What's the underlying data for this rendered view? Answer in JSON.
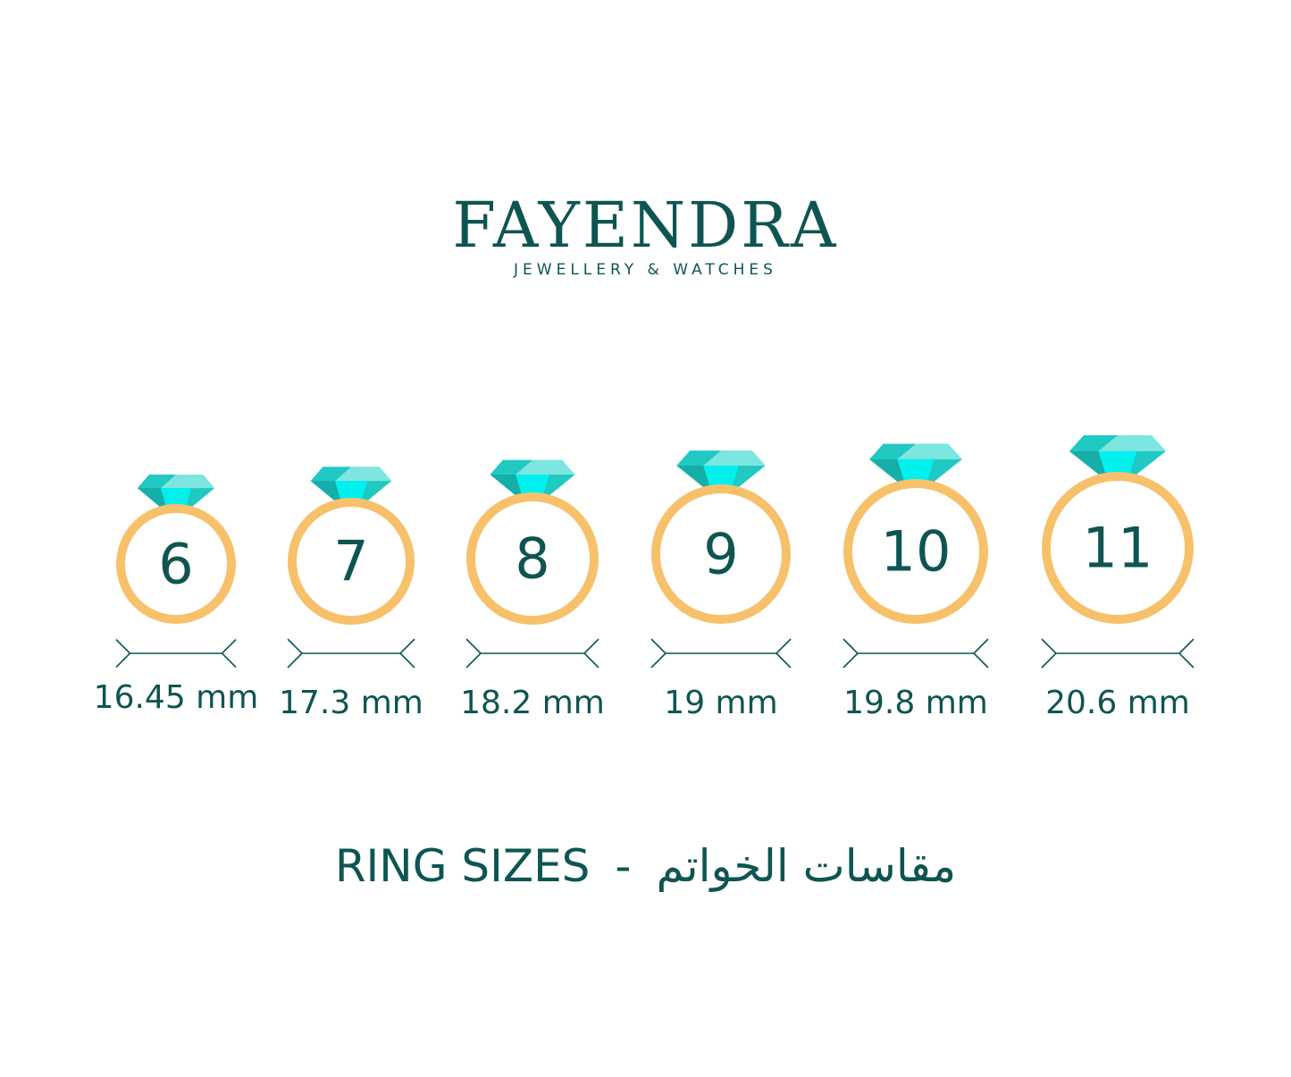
{
  "brand": {
    "name": "FAYENDRA",
    "tagline": "JEWELLERY & WATCHES"
  },
  "colors": {
    "text": "#0e5551",
    "ring": "#f7c16b",
    "gem_light": "#7ee6e0",
    "gem_mid": "#20c9c1",
    "gem_bright": "#00f0ee",
    "gem_dark": "#16aea8"
  },
  "rings": [
    {
      "size": "6",
      "diameter": "16.45 mm"
    },
    {
      "size": "7",
      "diameter": "17.3 mm"
    },
    {
      "size": "8",
      "diameter": "18.2 mm"
    },
    {
      "size": "9",
      "diameter": "19 mm"
    },
    {
      "size": "10",
      "diameter": "19.8 mm"
    },
    {
      "size": "11",
      "diameter": "20.6 mm"
    }
  ],
  "footer": {
    "english": "RING SIZES",
    "separator": "-",
    "arabic": "مقاسات الخواتم"
  }
}
